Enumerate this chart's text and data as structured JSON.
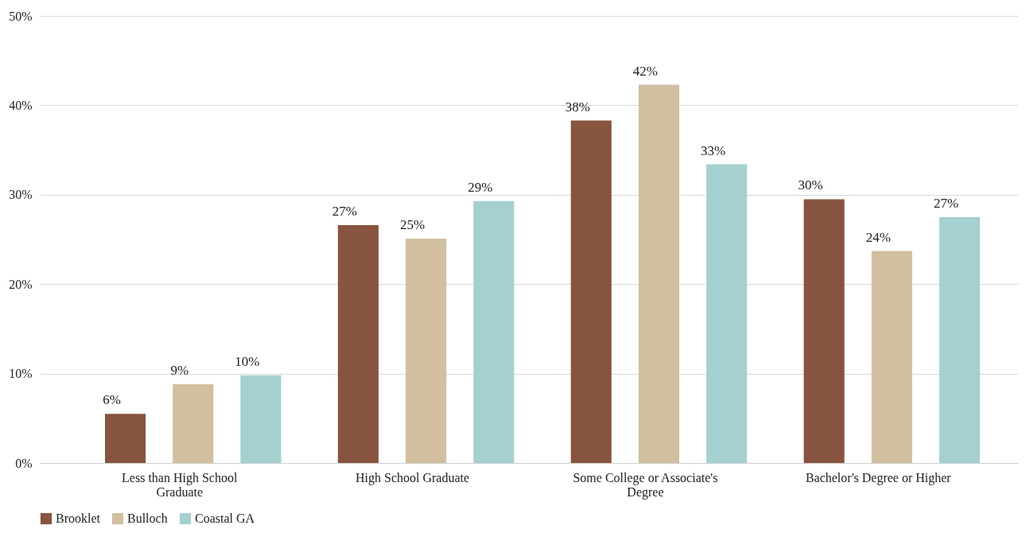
{
  "chart_data": {
    "type": "bar",
    "categories": [
      "Less than High School Graduate",
      "High School Graduate",
      "Some College or Associate's Degree",
      "Bachelor's Degree or Higher"
    ],
    "series": [
      {
        "name": "Brooklet",
        "color": "#87553f",
        "values": [
          5.5,
          26.6,
          38.3,
          29.5
        ],
        "value_labels": [
          "6%",
          "27%",
          "38%",
          "30%"
        ]
      },
      {
        "name": "Bulloch",
        "color": "#d1bfa0",
        "values": [
          8.8,
          25.1,
          42.3,
          23.7
        ],
        "value_labels": [
          "9%",
          "25%",
          "42%",
          "24%"
        ]
      },
      {
        "name": "Coastal GA",
        "color": "#a5d0cf",
        "values": [
          9.8,
          29.3,
          33.4,
          27.5
        ],
        "value_labels": [
          "10%",
          "29%",
          "33%",
          "27%"
        ]
      }
    ],
    "ylim": [
      0,
      50
    ],
    "yticks": [
      {
        "value": 0,
        "label": "0%"
      },
      {
        "value": 10,
        "label": "10%"
      },
      {
        "value": 20,
        "label": "20%"
      },
      {
        "value": 30,
        "label": "30%"
      },
      {
        "value": 40,
        "label": "40%"
      },
      {
        "value": 50,
        "label": "50%"
      }
    ],
    "grid": "y",
    "legend": "bottom"
  }
}
